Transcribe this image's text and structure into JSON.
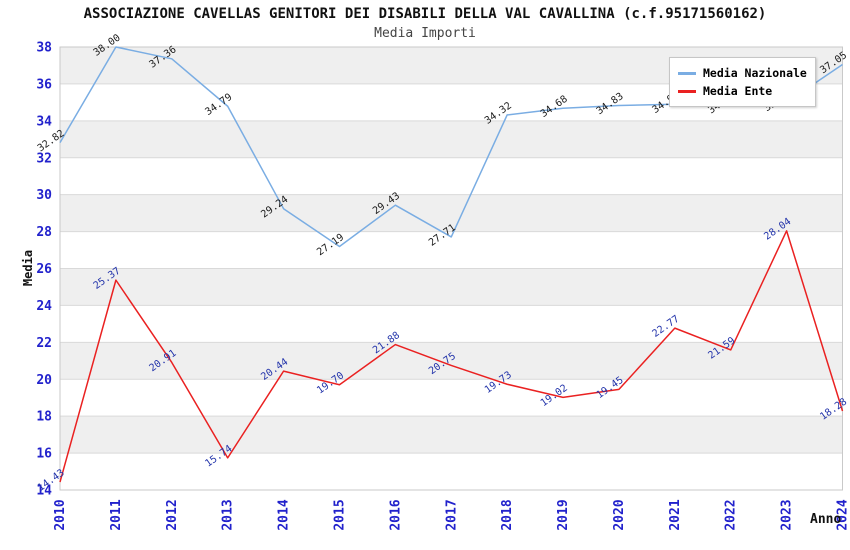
{
  "chart": {
    "title": "ASSOCIAZIONE CAVELLAS GENITORI DEI DISABILI DELLA VAL CAVALLINA (c.f.95171560162)",
    "subtitle": "Media Importi",
    "xlabel": "Anno",
    "ylabel": "Media",
    "legend": [
      {
        "label": "Media Nazionale",
        "color": "#7aade3"
      },
      {
        "label": "Media Ente",
        "color": "#ea2121"
      }
    ]
  },
  "chart_data": {
    "type": "line",
    "title": "ASSOCIAZIONE CAVELLAS GENITORI DEI DISABILI DELLA VAL CAVALLINA (c.f.95171560162)",
    "subtitle": "Media Importi",
    "xlabel": "Anno",
    "ylabel": "Media",
    "categories": [
      "2010",
      "2011",
      "2012",
      "2013",
      "2014",
      "2015",
      "2016",
      "2017",
      "2018",
      "2019",
      "2020",
      "2021",
      "2022",
      "2023",
      "2024"
    ],
    "series": [
      {
        "name": "Media Nazionale",
        "color": "#7aade3",
        "label_color": "#1a1a1a",
        "values": [
          32.82,
          38.0,
          37.36,
          34.79,
          29.24,
          27.19,
          29.43,
          27.71,
          34.32,
          34.68,
          34.83,
          34.9,
          34.88,
          35.0,
          37.05
        ]
      },
      {
        "name": "Media Ente",
        "color": "#ea2121",
        "label_color": "#2233aa",
        "values": [
          14.43,
          25.37,
          20.91,
          15.74,
          20.44,
          19.7,
          21.88,
          20.75,
          19.73,
          19.02,
          19.45,
          22.77,
          21.59,
          28.04,
          18.28
        ]
      }
    ],
    "ylim": [
      14,
      38
    ],
    "yticks": [
      14,
      16,
      18,
      20,
      22,
      24,
      26,
      28,
      30,
      32,
      34,
      36,
      38
    ],
    "tick_label_color": "#2222cc",
    "band_color": "#efefef",
    "grid_line_color": "#d9d9d9",
    "plot_border_color": "#c9c9c9",
    "grid": "horizontal-bands",
    "legend_position": "top-right",
    "point_label_format": "2-decimals"
  }
}
